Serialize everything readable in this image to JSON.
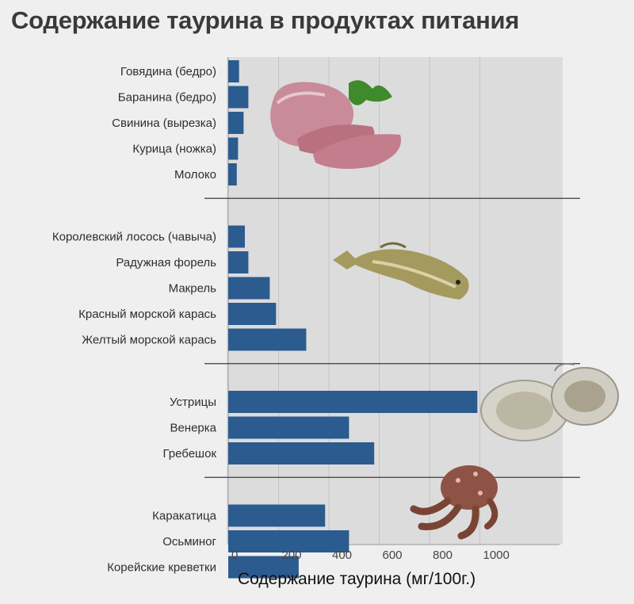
{
  "title": "Содержание таурина в продуктах питания",
  "chart_data": {
    "type": "bar",
    "orientation": "horizontal",
    "xlabel": "Содержание таурина (мг/100г.)",
    "xlim": [
      0,
      1300
    ],
    "xticks": [
      0,
      200,
      400,
      600,
      800,
      1000
    ],
    "grid": true,
    "bar_color": "#2b5b8f",
    "groups": [
      {
        "icon": "meat-icon",
        "categories": [
          "Говядина (бедро)",
          "Баранина (бедро)",
          "Свинина (вырезка)",
          "Курица (ножка)",
          "Молоко"
        ],
        "values": [
          43,
          80,
          61,
          39,
          34
        ]
      },
      {
        "icon": "fish-icon",
        "categories": [
          "Королевский лосось (чавыча)",
          "Радужная форель",
          "Макрель",
          "Красный морской карась",
          "Желтый морской карась"
        ],
        "values": [
          66,
          80,
          165,
          190,
          310
        ]
      },
      {
        "icon": "oyster-icon",
        "categories": [
          "Устрицы",
          "Венерка",
          "Гребешок"
        ],
        "values": [
          990,
          480,
          580
        ]
      },
      {
        "icon": "octopus-icon",
        "categories": [
          "Каракатица",
          "Осьминог",
          "Корейские креветки"
        ],
        "values": [
          385,
          480,
          280
        ]
      }
    ]
  }
}
